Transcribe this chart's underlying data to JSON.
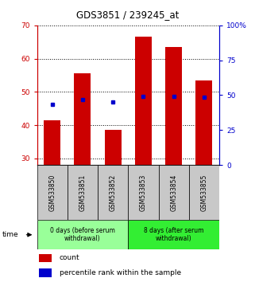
{
  "title": "GDS3851 / 239245_at",
  "samples": [
    "GSM533850",
    "GSM533851",
    "GSM533852",
    "GSM533853",
    "GSM533854",
    "GSM533855"
  ],
  "counts": [
    41.5,
    55.5,
    38.5,
    66.5,
    63.5,
    53.5
  ],
  "percentile_ranks": [
    43.5,
    47.0,
    45.0,
    49.0,
    49.0,
    48.5
  ],
  "ylim_left": [
    28,
    70
  ],
  "ylim_right": [
    0,
    100
  ],
  "yticks_left": [
    30,
    40,
    50,
    60,
    70
  ],
  "yticks_right": [
    0,
    25,
    50,
    75,
    100
  ],
  "ytick_labels_right": [
    "0",
    "25",
    "50",
    "75",
    "100%"
  ],
  "bar_color": "#cc0000",
  "dot_color": "#0000cc",
  "bar_width": 0.55,
  "group1_label": "0 days (before serum\nwithdrawal)",
  "group2_label": "8 days (after serum\nwithdrawal)",
  "group1_color": "#99ff99",
  "group2_color": "#33ee33",
  "legend_count_label": "count",
  "legend_pct_label": "percentile rank within the sample",
  "bg_color": "#ffffff",
  "tick_area_bg": "#c8c8c8",
  "left_tick_color": "#cc0000",
  "right_tick_color": "#0000cc",
  "title_fontsize": 8.5,
  "label_fontsize": 5.5,
  "group_fontsize": 5.5,
  "legend_fontsize": 6.5,
  "tick_fontsize": 6.5
}
